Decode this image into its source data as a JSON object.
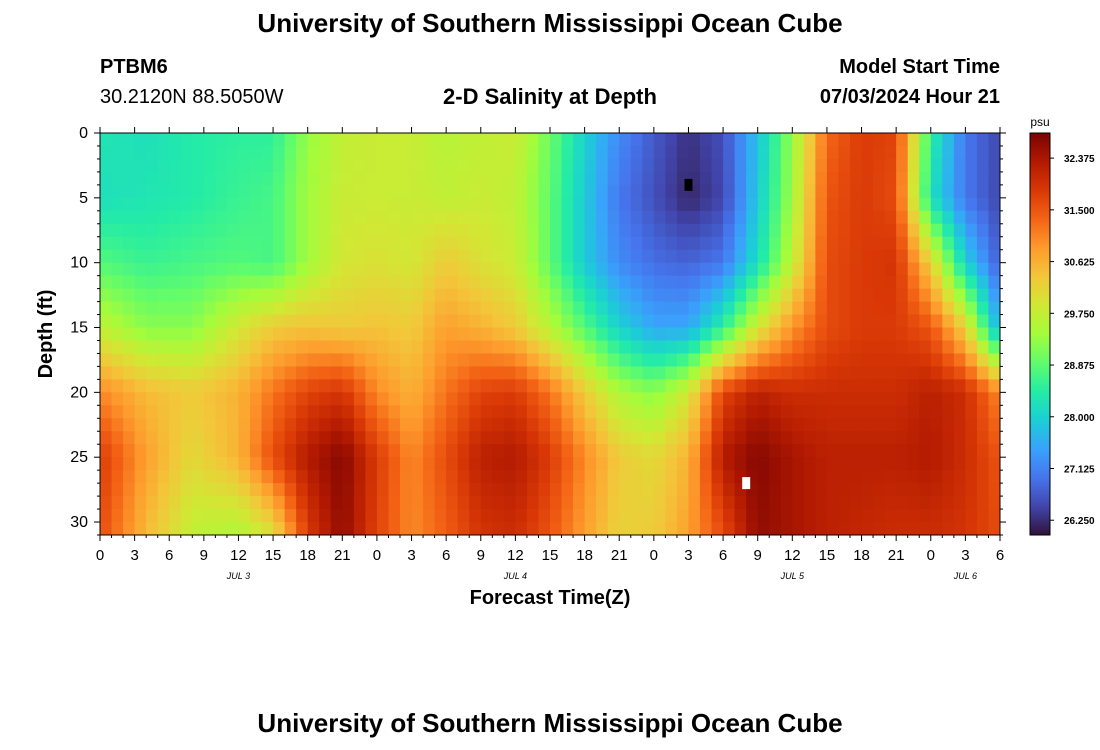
{
  "header": {
    "title": "University of Southern Mississippi Ocean Cube",
    "footer_title": "University of Southern Mississippi Ocean Cube",
    "station_id": "PTBM6",
    "coordinates": "30.2120N  88.5050W",
    "plot_title": "2-D Salinity at Depth",
    "model_start_label": "Model Start Time",
    "model_start_value": "07/03/2024 Hour 21"
  },
  "chart_data": {
    "type": "heatmap",
    "title": "2-D Salinity at Depth",
    "xlabel": "Forecast Time(Z)",
    "ylabel": "Depth (ft)",
    "x_range_hours": [
      0,
      78
    ],
    "y_range_ft": [
      0,
      31
    ],
    "x_tick_labels": [
      "0",
      "3",
      "6",
      "9",
      "12",
      "15",
      "18",
      "21",
      "0",
      "3",
      "6",
      "9",
      "12",
      "15",
      "18",
      "21",
      "0",
      "3",
      "6",
      "9",
      "12",
      "15",
      "18",
      "21",
      "0",
      "3",
      "6"
    ],
    "y_ticks": [
      0,
      5,
      10,
      15,
      20,
      25,
      30
    ],
    "date_labels": [
      {
        "label": "JUL 3",
        "hour": 12
      },
      {
        "label": "JUL 4",
        "hour": 36
      },
      {
        "label": "JUL 5",
        "hour": 60
      },
      {
        "label": "JUL 6",
        "hour": 75
      }
    ],
    "colorbar": {
      "unit": "psu",
      "min": 26.0,
      "max": 32.8,
      "tick_labels": [
        "32.375",
        "31.500",
        "30.625",
        "29.750",
        "28.875",
        "28.000",
        "27.125",
        "26.250"
      ],
      "colors": [
        "#30123b",
        "#4145ab",
        "#4675ed",
        "#39a2fc",
        "#1bcfd4",
        "#24eca6",
        "#61fc6c",
        "#a4fc3b",
        "#d1e834",
        "#f3c63a",
        "#fe9b2d",
        "#f36315",
        "#d93806",
        "#b11901",
        "#7a0403"
      ]
    },
    "salinity_field": {
      "hours": [
        0,
        4,
        8,
        12,
        15,
        18,
        21,
        24,
        27,
        30,
        33,
        36,
        39,
        42,
        45,
        48,
        51,
        54,
        57,
        60,
        63,
        66,
        69,
        72,
        75,
        78
      ],
      "depths": [
        0,
        5,
        10,
        15,
        20,
        25,
        31
      ],
      "values": [
        [
          28.3,
          28.2,
          28.4,
          28.5,
          28.5,
          29.3,
          29.7,
          29.8,
          29.8,
          29.6,
          29.7,
          29.8,
          29.0,
          28.0,
          27.2,
          26.7,
          26.3,
          26.6,
          27.8,
          29.3,
          31.3,
          31.8,
          31.7,
          28.5,
          27.0,
          26.5
        ],
        [
          28.2,
          28.3,
          28.4,
          28.6,
          28.7,
          29.4,
          29.8,
          29.8,
          29.8,
          29.7,
          29.8,
          29.7,
          28.9,
          27.9,
          27.0,
          26.6,
          26.2,
          26.5,
          27.9,
          29.4,
          31.5,
          31.8,
          31.6,
          28.2,
          27.0,
          26.5
        ],
        [
          28.8,
          28.6,
          28.7,
          28.8,
          28.7,
          29.4,
          29.9,
          30.0,
          29.9,
          30.3,
          30.0,
          29.8,
          28.9,
          27.9,
          27.2,
          26.9,
          26.8,
          27.0,
          28.2,
          29.7,
          31.6,
          31.8,
          31.9,
          30.2,
          28.0,
          26.7
        ],
        [
          29.7,
          29.2,
          29.2,
          29.9,
          30.3,
          30.4,
          30.3,
          30.4,
          30.3,
          30.8,
          30.6,
          30.3,
          29.6,
          28.8,
          28.0,
          27.5,
          27.5,
          28.5,
          29.9,
          30.9,
          31.6,
          31.8,
          31.8,
          31.5,
          30.2,
          27.5
        ],
        [
          31.0,
          30.5,
          30.3,
          30.6,
          31.2,
          31.7,
          31.9,
          31.0,
          30.6,
          31.2,
          31.7,
          31.8,
          31.2,
          30.3,
          29.5,
          29.2,
          29.9,
          31.7,
          32.2,
          32.0,
          32.0,
          32.0,
          32.0,
          32.2,
          32.0,
          31.0
        ],
        [
          31.8,
          30.8,
          30.1,
          30.6,
          31.6,
          32.3,
          32.7,
          31.8,
          31.0,
          31.6,
          32.2,
          32.3,
          31.8,
          31.0,
          30.3,
          30.1,
          30.6,
          32.3,
          32.7,
          32.4,
          32.2,
          32.2,
          32.2,
          32.3,
          32.0,
          31.5
        ],
        [
          31.6,
          30.5,
          29.7,
          29.5,
          30.0,
          31.8,
          32.6,
          31.7,
          31.0,
          31.4,
          31.9,
          32.0,
          31.5,
          30.8,
          30.2,
          30.3,
          30.8,
          31.6,
          32.6,
          32.4,
          32.2,
          32.1,
          32.0,
          32.0,
          31.9,
          31.6
        ]
      ]
    },
    "markers": [
      {
        "hour": 51.0,
        "depth": 4,
        "color": "#000000"
      },
      {
        "hour": 56.0,
        "depth": 27,
        "color": "#ffffff"
      }
    ]
  }
}
